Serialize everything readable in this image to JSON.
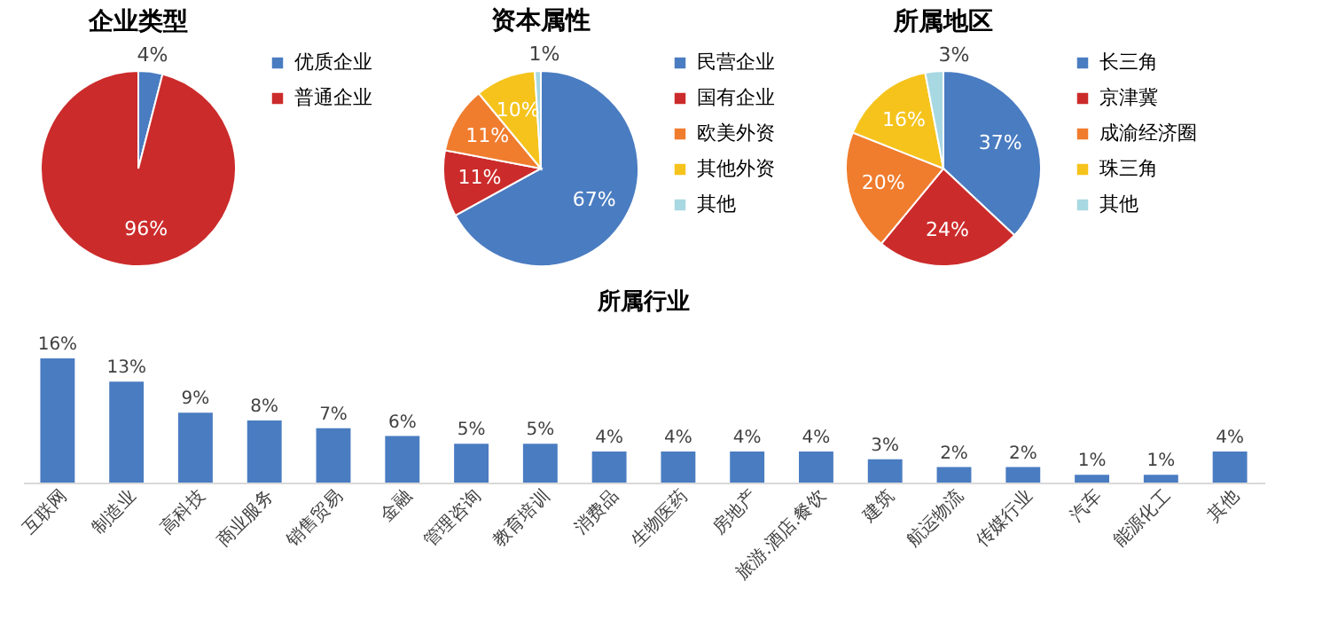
{
  "chart_data": [
    {
      "type": "pie",
      "title": "企业类型",
      "categories": [
        "优质企业",
        "普通企业"
      ],
      "values": [
        4,
        96
      ],
      "value_labels": [
        "4%",
        "96%"
      ],
      "colors": [
        "#4a7cc1",
        "#cc2b2b"
      ],
      "legend": "right"
    },
    {
      "type": "pie",
      "title": "资本属性",
      "categories": [
        "民营企业",
        "国有企业",
        "欧美外资",
        "其他外资",
        "其他"
      ],
      "values": [
        67,
        11,
        11,
        10,
        1
      ],
      "value_labels": [
        "67%",
        "11%",
        "11%",
        "10%",
        "1%"
      ],
      "colors": [
        "#4a7cc1",
        "#cc2b2b",
        "#f07c2e",
        "#f5c31c",
        "#a8d8e2"
      ],
      "legend": "right"
    },
    {
      "type": "pie",
      "title": "所属地区",
      "categories": [
        "长三角",
        "京津冀",
        "成渝经济圈",
        "珠三角",
        "其他"
      ],
      "values": [
        37,
        24,
        20,
        16,
        3
      ],
      "value_labels": [
        "37%",
        "24%",
        "20%",
        "16%",
        "3%"
      ],
      "colors": [
        "#4a7cc1",
        "#cc2b2b",
        "#f07c2e",
        "#f5c31c",
        "#a8d8e2"
      ],
      "legend": "right"
    },
    {
      "type": "bar",
      "title": "所属行业",
      "categories": [
        "互联网",
        "制造业",
        "高科技",
        "商业服务",
        "销售贸易",
        "金融",
        "管理咨询",
        "教育培训",
        "消费品",
        "生物医药",
        "房地产",
        "旅游.酒店.餐饮",
        "建筑",
        "航运物流",
        "传媒行业",
        "汽车",
        "能源化工",
        "其他"
      ],
      "values": [
        16,
        13,
        9,
        8,
        7,
        6,
        5,
        5,
        4,
        4,
        4,
        4,
        3,
        2,
        2,
        1,
        1,
        4
      ],
      "value_labels": [
        "16%",
        "13%",
        "9%",
        "8%",
        "7%",
        "6%",
        "5%",
        "5%",
        "4%",
        "4%",
        "4%",
        "4%",
        "3%",
        "2%",
        "2%",
        "1%",
        "1%",
        "4%"
      ],
      "color": "#4a7cc1",
      "tick_labels": "x",
      "grid": false
    }
  ]
}
